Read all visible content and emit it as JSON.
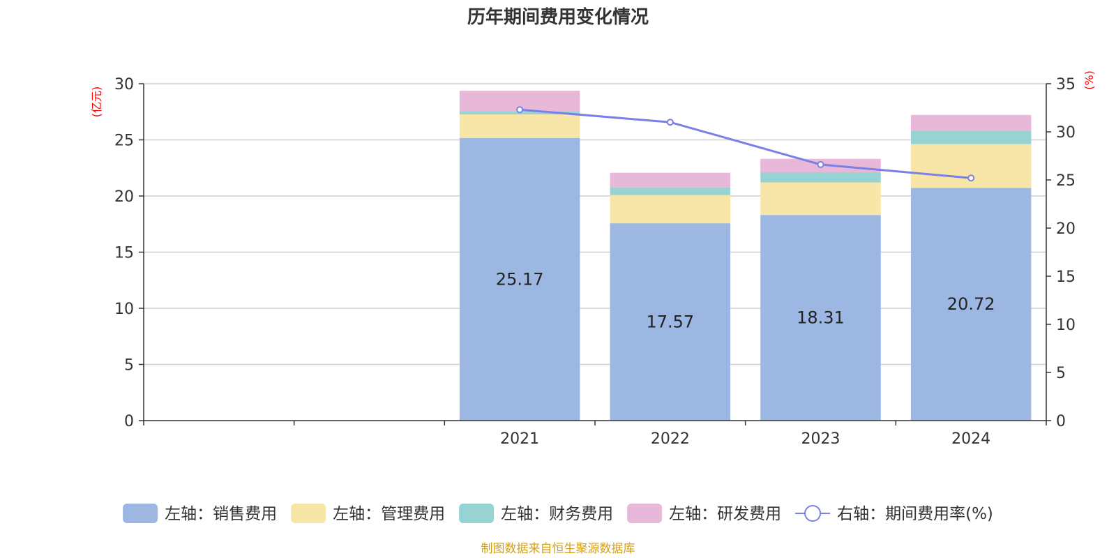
{
  "chart_data": {
    "type": "bar",
    "title": "历年期间费用变化情况",
    "categories": [
      "",
      "",
      "2021",
      "2022",
      "2023",
      "2024"
    ],
    "left_axis": {
      "unit": "(亿元)",
      "ylim": [
        0,
        30
      ],
      "ticks": [
        0,
        5,
        10,
        15,
        20,
        25,
        30
      ]
    },
    "right_axis": {
      "unit": "(%)",
      "ylim": [
        0,
        35
      ],
      "ticks": [
        0,
        5,
        10,
        15,
        20,
        25,
        30,
        35
      ]
    },
    "series": [
      {
        "name": "左轴：销售费用",
        "type": "bar",
        "stack": "cost",
        "color": "#9bb7e2",
        "values": [
          null,
          null,
          25.17,
          17.57,
          18.31,
          20.72
        ],
        "show_labels": true
      },
      {
        "name": "左轴：管理费用",
        "type": "bar",
        "stack": "cost",
        "color": "#f8e6a8",
        "values": [
          null,
          null,
          2.1,
          2.5,
          2.9,
          3.9
        ],
        "show_labels": false
      },
      {
        "name": "左轴：财务费用",
        "type": "bar",
        "stack": "cost",
        "color": "#98d3d3",
        "values": [
          null,
          null,
          0.3,
          0.7,
          0.9,
          1.2
        ],
        "show_labels": false
      },
      {
        "name": "左轴：研发费用",
        "type": "bar",
        "stack": "cost",
        "color": "#e8b8d8",
        "values": [
          null,
          null,
          1.8,
          1.3,
          1.2,
          1.4
        ],
        "show_labels": false
      },
      {
        "name": "右轴：期间费用率(%)",
        "type": "line",
        "axis": "right",
        "color": "#7b7fe8",
        "values": [
          null,
          null,
          32.3,
          31.0,
          26.6,
          25.2
        ]
      }
    ],
    "grid": true,
    "legend_position": "bottom"
  },
  "source_note": "制图数据来自恒生聚源数据库"
}
